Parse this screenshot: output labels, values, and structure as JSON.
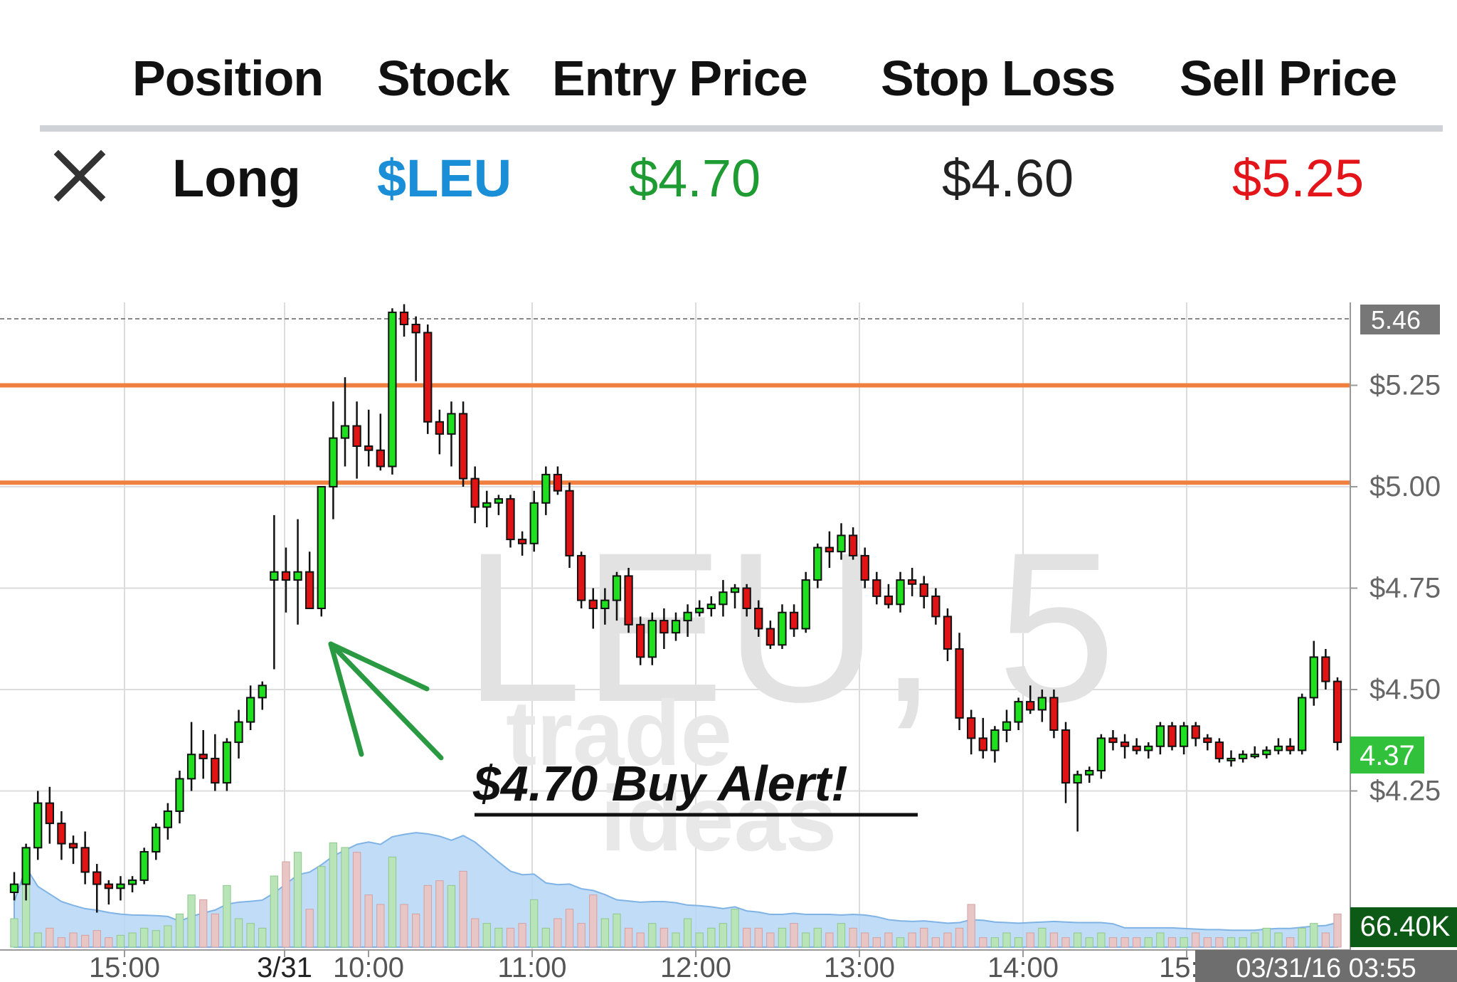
{
  "table": {
    "headers": [
      "Position",
      "Stock",
      "Entry Price",
      "Stop Loss",
      "Sell Price"
    ],
    "row": {
      "position": "Long",
      "stock": "$LEU",
      "entry": "$4.70",
      "stop": "$4.60",
      "sell": "$5.25"
    }
  },
  "chart_data": {
    "type": "candlestick",
    "watermark": "LEU, 5",
    "logo_text": "trade ideas",
    "annotation": "$4.70 Buy Alert!",
    "price_axis": {
      "labels": [
        "$5.25",
        "$5.00",
        "$4.75",
        "$4.50",
        "$4.25"
      ],
      "ticks": [
        5.25,
        5.0,
        4.75,
        4.5,
        4.25
      ],
      "range": [
        4.0,
        5.5
      ]
    },
    "time_axis": {
      "labels": [
        "15:00",
        "3/31",
        "10:00",
        "11:00",
        "12:00",
        "13:00",
        "14:00",
        "15:0"
      ]
    },
    "high_marker": "5.46",
    "last_price": "4.37",
    "volume_label": "66.40K",
    "timestamp": "03/31/16 03:55",
    "horizontal_lines": [
      5.25,
      5.01
    ],
    "candles": [
      [
        4.0,
        4.05,
        3.98,
        4.02
      ],
      [
        4.02,
        4.12,
        3.98,
        4.11
      ],
      [
        4.11,
        4.25,
        4.08,
        4.22
      ],
      [
        4.22,
        4.26,
        4.12,
        4.17
      ],
      [
        4.17,
        4.2,
        4.08,
        4.12
      ],
      [
        4.12,
        4.14,
        4.07,
        4.11
      ],
      [
        4.11,
        4.15,
        4.02,
        4.05
      ],
      [
        4.05,
        4.07,
        3.95,
        4.02
      ],
      [
        4.02,
        4.03,
        3.97,
        4.01
      ],
      [
        4.01,
        4.04,
        3.98,
        4.02
      ],
      [
        4.02,
        4.04,
        4.0,
        4.03
      ],
      [
        4.03,
        4.11,
        4.02,
        4.1
      ],
      [
        4.1,
        4.17,
        4.08,
        4.16
      ],
      [
        4.16,
        4.22,
        4.13,
        4.2
      ],
      [
        4.2,
        4.3,
        4.17,
        4.28
      ],
      [
        4.28,
        4.42,
        4.25,
        4.34
      ],
      [
        4.34,
        4.4,
        4.28,
        4.33
      ],
      [
        4.33,
        4.39,
        4.25,
        4.27
      ],
      [
        4.27,
        4.38,
        4.25,
        4.37
      ],
      [
        4.37,
        4.45,
        4.33,
        4.42
      ],
      [
        4.42,
        4.51,
        4.4,
        4.48
      ],
      [
        4.48,
        4.52,
        4.45,
        4.51
      ],
      [
        4.77,
        4.93,
        4.55,
        4.79
      ],
      [
        4.79,
        4.85,
        4.69,
        4.77
      ],
      [
        4.77,
        4.92,
        4.66,
        4.79
      ],
      [
        4.79,
        4.84,
        4.7,
        4.7
      ],
      [
        4.7,
        5.0,
        4.68,
        5.0
      ],
      [
        5.0,
        5.21,
        4.92,
        5.12
      ],
      [
        5.12,
        5.27,
        5.05,
        5.15
      ],
      [
        5.15,
        5.21,
        5.02,
        5.1
      ],
      [
        5.1,
        5.19,
        5.05,
        5.09
      ],
      [
        5.09,
        5.18,
        5.04,
        5.05
      ],
      [
        5.05,
        5.44,
        5.03,
        5.43
      ],
      [
        5.43,
        5.45,
        5.37,
        5.4
      ],
      [
        5.4,
        5.42,
        5.26,
        5.38
      ],
      [
        5.38,
        5.4,
        5.13,
        5.16
      ],
      [
        5.16,
        5.19,
        5.08,
        5.13
      ],
      [
        5.13,
        5.21,
        5.05,
        5.18
      ],
      [
        5.18,
        5.21,
        5.0,
        5.02
      ],
      [
        5.02,
        5.05,
        4.91,
        4.95
      ],
      [
        4.95,
        4.99,
        4.9,
        4.96
      ],
      [
        4.96,
        4.98,
        4.93,
        4.97
      ],
      [
        4.97,
        4.98,
        4.85,
        4.87
      ],
      [
        4.87,
        4.89,
        4.83,
        4.86
      ],
      [
        4.86,
        4.99,
        4.84,
        4.96
      ],
      [
        4.96,
        5.05,
        4.93,
        5.03
      ],
      [
        5.03,
        5.05,
        4.98,
        4.99
      ],
      [
        4.99,
        5.01,
        4.8,
        4.83
      ],
      [
        4.83,
        4.84,
        4.7,
        4.72
      ],
      [
        4.72,
        4.75,
        4.65,
        4.7
      ],
      [
        4.7,
        4.75,
        4.66,
        4.72
      ],
      [
        4.72,
        4.79,
        4.67,
        4.78
      ],
      [
        4.78,
        4.8,
        4.64,
        4.66
      ],
      [
        4.66,
        4.68,
        4.56,
        4.58
      ],
      [
        4.58,
        4.69,
        4.56,
        4.67
      ],
      [
        4.67,
        4.7,
        4.6,
        4.64
      ],
      [
        4.64,
        4.69,
        4.62,
        4.67
      ],
      [
        4.67,
        4.71,
        4.63,
        4.69
      ],
      [
        4.69,
        4.72,
        4.68,
        4.7
      ],
      [
        4.7,
        4.73,
        4.68,
        4.71
      ],
      [
        4.71,
        4.77,
        4.68,
        4.74
      ],
      [
        4.74,
        4.76,
        4.7,
        4.75
      ],
      [
        4.75,
        4.76,
        4.68,
        4.7
      ],
      [
        4.7,
        4.72,
        4.63,
        4.65
      ],
      [
        4.65,
        4.67,
        4.6,
        4.61
      ],
      [
        4.61,
        4.71,
        4.6,
        4.69
      ],
      [
        4.69,
        4.71,
        4.63,
        4.65
      ],
      [
        4.65,
        4.79,
        4.64,
        4.77
      ],
      [
        4.77,
        4.86,
        4.75,
        4.85
      ],
      [
        4.85,
        4.89,
        4.8,
        4.84
      ],
      [
        4.84,
        4.91,
        4.82,
        4.88
      ],
      [
        4.88,
        4.9,
        4.82,
        4.83
      ],
      [
        4.83,
        4.85,
        4.75,
        4.77
      ],
      [
        4.77,
        4.79,
        4.71,
        4.73
      ],
      [
        4.73,
        4.76,
        4.7,
        4.71
      ],
      [
        4.71,
        4.79,
        4.69,
        4.77
      ],
      [
        4.77,
        4.8,
        4.73,
        4.76
      ],
      [
        4.76,
        4.78,
        4.7,
        4.73
      ],
      [
        4.73,
        4.75,
        4.66,
        4.68
      ],
      [
        4.68,
        4.7,
        4.57,
        4.6
      ],
      [
        4.6,
        4.64,
        4.4,
        4.43
      ],
      [
        4.43,
        4.45,
        4.34,
        4.38
      ],
      [
        4.38,
        4.43,
        4.33,
        4.35
      ],
      [
        4.35,
        4.41,
        4.32,
        4.4
      ],
      [
        4.4,
        4.45,
        4.37,
        4.42
      ],
      [
        4.42,
        4.48,
        4.4,
        4.47
      ],
      [
        4.47,
        4.51,
        4.44,
        4.45
      ],
      [
        4.45,
        4.5,
        4.42,
        4.48
      ],
      [
        4.48,
        4.5,
        4.38,
        4.4
      ],
      [
        4.4,
        4.42,
        4.22,
        4.27
      ],
      [
        4.27,
        4.3,
        4.15,
        4.29
      ],
      [
        4.29,
        4.31,
        4.27,
        4.3
      ],
      [
        4.3,
        4.39,
        4.28,
        4.38
      ],
      [
        4.38,
        4.4,
        4.35,
        4.37
      ],
      [
        4.37,
        4.39,
        4.33,
        4.36
      ],
      [
        4.36,
        4.38,
        4.34,
        4.35
      ],
      [
        4.35,
        4.37,
        4.33,
        4.36
      ],
      [
        4.36,
        4.42,
        4.34,
        4.41
      ],
      [
        4.41,
        4.42,
        4.35,
        4.36
      ],
      [
        4.36,
        4.42,
        4.34,
        4.41
      ],
      [
        4.41,
        4.42,
        4.36,
        4.38
      ],
      [
        4.38,
        4.39,
        4.35,
        4.37
      ],
      [
        4.37,
        4.38,
        4.32,
        4.33
      ],
      [
        4.33,
        4.35,
        4.31,
        4.33
      ],
      [
        4.33,
        4.35,
        4.32,
        4.34
      ],
      [
        4.34,
        4.36,
        4.33,
        4.34
      ],
      [
        4.34,
        4.36,
        4.33,
        4.35
      ],
      [
        4.35,
        4.38,
        4.34,
        4.36
      ],
      [
        4.36,
        4.38,
        4.34,
        4.35
      ],
      [
        4.35,
        4.49,
        4.34,
        4.48
      ],
      [
        4.48,
        4.62,
        4.46,
        4.58
      ],
      [
        4.58,
        4.6,
        4.5,
        4.52
      ],
      [
        4.52,
        4.53,
        4.35,
        4.37
      ]
    ],
    "volume": [
      12,
      30,
      6,
      8,
      4,
      6,
      5,
      7,
      4,
      5,
      6,
      8,
      7,
      9,
      14,
      22,
      20,
      14,
      26,
      12,
      10,
      8,
      30,
      36,
      40,
      16,
      34,
      44,
      42,
      40,
      22,
      18,
      38,
      18,
      14,
      26,
      28,
      26,
      32,
      12,
      10,
      8,
      8,
      10,
      20,
      8,
      12,
      16,
      10,
      22,
      12,
      14,
      8,
      6,
      10,
      8,
      6,
      12,
      6,
      8,
      10,
      16,
      8,
      8,
      6,
      8,
      10,
      6,
      8,
      6,
      10,
      8,
      6,
      4,
      6,
      4,
      6,
      8,
      4,
      6,
      8,
      18,
      4,
      4,
      6,
      4,
      6,
      8,
      6,
      4,
      6,
      4,
      6,
      4,
      4,
      4,
      4,
      6,
      4,
      4,
      6,
      4,
      4,
      4,
      4,
      6,
      8,
      6,
      4,
      8,
      10,
      6,
      14
    ]
  }
}
